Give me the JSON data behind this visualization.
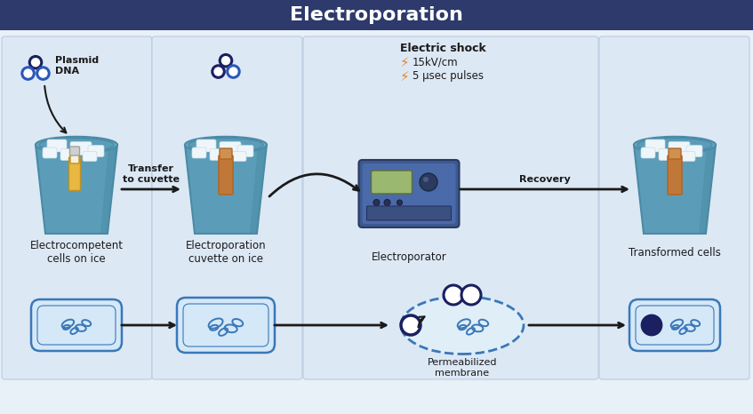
{
  "title": "Electroporation",
  "title_bg": "#2d3a6b",
  "title_color": "#ffffff",
  "title_fontsize": 16,
  "bg_color": "#e8f0f8",
  "fig_width": 8.47,
  "fig_height": 4.66,
  "dpi": 100,
  "section_labels": [
    "Electrocompetent\ncells on ice",
    "Electroporation\ncuvette on ice",
    "Electroporator",
    "Transformed cells"
  ],
  "arrow_label_1": "Transfer\nto cuvette",
  "arrow_label_2": "Recovery",
  "electric_shock_title": "Electric shock",
  "electric_shock_lines": [
    "15kV/cm",
    "5 μsec pulses"
  ],
  "permeabilized_label": "Permeabilized\nmembrane",
  "plasmid_label": "Plasmid\nDNA",
  "bucket_color": "#5b9db8",
  "bucket_dark": "#4a8aa5",
  "bucket_rim": "#6aadca",
  "tube_yellow": "#e8b840",
  "tube_orange": "#c07838",
  "tube_cap": "#b06828",
  "ice_white": "#ddeef5",
  "bacteria_stroke": "#3a78b8",
  "cell_fill": "#d5e8f8",
  "ring_color_dark": "#1a2060",
  "ring_color_blue": "#2a58b8",
  "arrow_color": "#1a1a1a",
  "section_panel": "#dde8f5",
  "section_border": "#b8cce0"
}
